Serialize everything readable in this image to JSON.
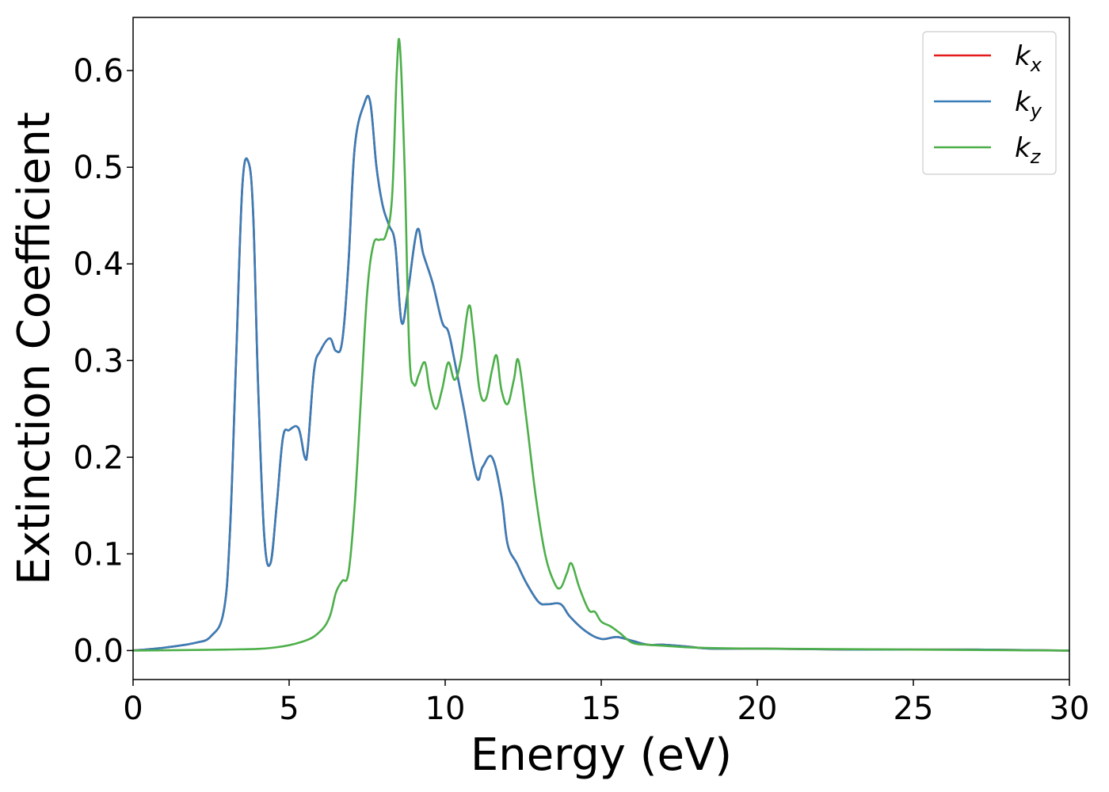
{
  "chart_data": {
    "type": "line",
    "title": "",
    "xlabel": "Energy (eV)",
    "ylabel": "Extinction Coefficient",
    "xlim": [
      0,
      30
    ],
    "ylim": [
      -0.03,
      0.655
    ],
    "xticks": [
      0,
      5,
      10,
      15,
      20,
      25,
      30
    ],
    "yticks": [
      0.0,
      0.1,
      0.2,
      0.3,
      0.4,
      0.5,
      0.6
    ],
    "grid": false,
    "legend_position": "top-right",
    "series": [
      {
        "name": "k",
        "subscript": "x",
        "color": "#e41a1c",
        "x": [
          0,
          1,
          2,
          2.5,
          2.9,
          3.1,
          3.3,
          3.5,
          3.7,
          3.85,
          4.0,
          4.2,
          4.4,
          4.6,
          4.8,
          5.0,
          5.3,
          5.5,
          5.6,
          5.8,
          6.0,
          6.3,
          6.5,
          6.7,
          6.9,
          7.1,
          7.4,
          7.6,
          7.8,
          8.0,
          8.2,
          8.4,
          8.6,
          8.8,
          9.1,
          9.3,
          9.6,
          9.9,
          10.1,
          10.3,
          10.6,
          11.0,
          11.2,
          11.5,
          11.8,
          12.0,
          12.3,
          12.6,
          13.0,
          13.3,
          13.7,
          14.0,
          14.5,
          15.0,
          15.5,
          16.0,
          16.5,
          17.0,
          17.8,
          18.5,
          20,
          23,
          27,
          30
        ],
        "values": [
          0,
          0.003,
          0.008,
          0.015,
          0.04,
          0.12,
          0.3,
          0.48,
          0.505,
          0.45,
          0.28,
          0.12,
          0.09,
          0.15,
          0.22,
          0.228,
          0.23,
          0.2,
          0.21,
          0.29,
          0.31,
          0.323,
          0.31,
          0.32,
          0.4,
          0.52,
          0.565,
          0.567,
          0.5,
          0.46,
          0.44,
          0.42,
          0.34,
          0.37,
          0.435,
          0.41,
          0.38,
          0.34,
          0.33,
          0.3,
          0.25,
          0.18,
          0.19,
          0.2,
          0.16,
          0.11,
          0.09,
          0.07,
          0.05,
          0.048,
          0.048,
          0.035,
          0.02,
          0.012,
          0.014,
          0.01,
          0.006,
          0.006,
          0.004,
          0.002,
          0.002,
          0.001,
          0.001,
          0.0
        ]
      },
      {
        "name": "k",
        "subscript": "y",
        "color": "#377eb8",
        "x": [
          0,
          1,
          2,
          2.5,
          2.9,
          3.1,
          3.3,
          3.5,
          3.7,
          3.85,
          4.0,
          4.2,
          4.4,
          4.6,
          4.8,
          5.0,
          5.3,
          5.5,
          5.6,
          5.8,
          6.0,
          6.3,
          6.5,
          6.7,
          6.9,
          7.1,
          7.4,
          7.6,
          7.8,
          8.0,
          8.2,
          8.4,
          8.6,
          8.8,
          9.1,
          9.3,
          9.6,
          9.9,
          10.1,
          10.3,
          10.6,
          11.0,
          11.2,
          11.5,
          11.8,
          12.0,
          12.3,
          12.6,
          13.0,
          13.3,
          13.7,
          14.0,
          14.5,
          15.0,
          15.5,
          16.0,
          16.5,
          17.0,
          17.8,
          18.5,
          20,
          23,
          27,
          30
        ],
        "values": [
          0,
          0.003,
          0.008,
          0.015,
          0.04,
          0.12,
          0.3,
          0.48,
          0.505,
          0.45,
          0.28,
          0.12,
          0.09,
          0.15,
          0.22,
          0.228,
          0.23,
          0.2,
          0.21,
          0.29,
          0.31,
          0.323,
          0.31,
          0.32,
          0.4,
          0.52,
          0.565,
          0.567,
          0.5,
          0.46,
          0.44,
          0.42,
          0.34,
          0.37,
          0.435,
          0.41,
          0.38,
          0.34,
          0.33,
          0.3,
          0.25,
          0.18,
          0.19,
          0.2,
          0.16,
          0.11,
          0.09,
          0.07,
          0.05,
          0.048,
          0.048,
          0.035,
          0.02,
          0.012,
          0.014,
          0.01,
          0.006,
          0.006,
          0.004,
          0.002,
          0.002,
          0.001,
          0.001,
          0.0
        ]
      },
      {
        "name": "k",
        "subscript": "z",
        "color": "#4daf4a",
        "x": [
          0,
          3,
          4.5,
          5.5,
          6.0,
          6.3,
          6.5,
          6.7,
          6.9,
          7.1,
          7.3,
          7.5,
          7.7,
          7.9,
          8.1,
          8.3,
          8.45,
          8.55,
          8.7,
          8.85,
          9.0,
          9.15,
          9.35,
          9.5,
          9.7,
          9.9,
          10.1,
          10.3,
          10.5,
          10.75,
          10.9,
          11.1,
          11.3,
          11.5,
          11.65,
          11.8,
          12.0,
          12.2,
          12.35,
          12.6,
          12.9,
          13.2,
          13.5,
          13.7,
          13.9,
          14.05,
          14.3,
          14.6,
          14.8,
          15.0,
          15.3,
          15.6,
          16.0,
          16.5,
          17.0,
          18.0,
          20,
          25,
          30
        ],
        "values": [
          0,
          0.001,
          0.003,
          0.01,
          0.02,
          0.035,
          0.06,
          0.072,
          0.08,
          0.15,
          0.26,
          0.37,
          0.42,
          0.425,
          0.43,
          0.47,
          0.6,
          0.625,
          0.5,
          0.31,
          0.275,
          0.285,
          0.298,
          0.27,
          0.25,
          0.27,
          0.298,
          0.28,
          0.3,
          0.356,
          0.33,
          0.27,
          0.26,
          0.29,
          0.305,
          0.27,
          0.255,
          0.28,
          0.3,
          0.24,
          0.16,
          0.1,
          0.07,
          0.065,
          0.08,
          0.09,
          0.065,
          0.042,
          0.04,
          0.03,
          0.025,
          0.018,
          0.008,
          0.006,
          0.005,
          0.003,
          0.002,
          0.001,
          0.0
        ]
      }
    ]
  }
}
